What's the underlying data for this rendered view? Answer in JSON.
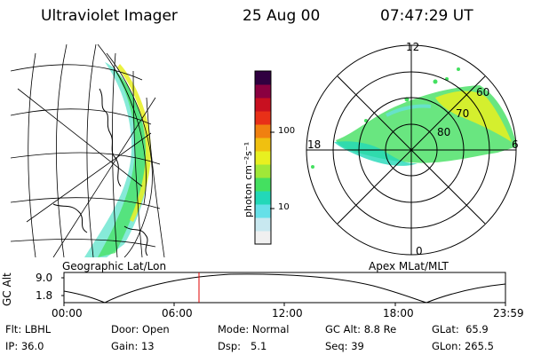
{
  "header": {
    "instrument": "Ultraviolet Imager",
    "date": "25 Aug 00",
    "time": "07:47:29 UT"
  },
  "colorbar": {
    "unit_label": "photon cm⁻²s⁻¹",
    "tick_100": "100",
    "tick_10": "10",
    "colors": [
      "#f0f0f0",
      "#c8e8f0",
      "#66e0e8",
      "#22d8b8",
      "#44e060",
      "#a0e838",
      "#e8f020",
      "#f0c010",
      "#f08010",
      "#e83018",
      "#c81020",
      "#8a0040",
      "#300040"
    ]
  },
  "map_panel": {
    "label": "Geographic Lat/Lon"
  },
  "polar_panel": {
    "label": "Apex MLat/MLT",
    "mlt_labels": {
      "top": "12",
      "left": "18",
      "right": "6",
      "bottom": "0"
    },
    "lat_labels": [
      "60",
      "70",
      "80"
    ]
  },
  "timeline": {
    "y_label": "GC Alt",
    "y_ticks": [
      "9.0",
      "1.8"
    ],
    "x_ticks": [
      "00:00",
      "06:00",
      "12:00",
      "18:00",
      "23:59"
    ],
    "marker_color": "#e00000"
  },
  "info": {
    "filter_label": "Flt:",
    "filter_value": "LBHL",
    "ip_label": "IP:",
    "ip_value": "36.0",
    "door_label": "Door:",
    "door_value": "Open",
    "gain_label": "Gain:",
    "gain_value": "13",
    "mode_label": "Mode:",
    "mode_value": "Normal",
    "dsp_label": "Dsp:",
    "dsp_value": "5.1",
    "gcalt_label": "GC Alt:",
    "gcalt_value": "8.8 Re",
    "seq_label": "Seq:",
    "seq_value": "39",
    "glat_label": "GLat:",
    "glat_value": "65.9",
    "glon_label": "GLon:",
    "glon_value": "265.5"
  }
}
